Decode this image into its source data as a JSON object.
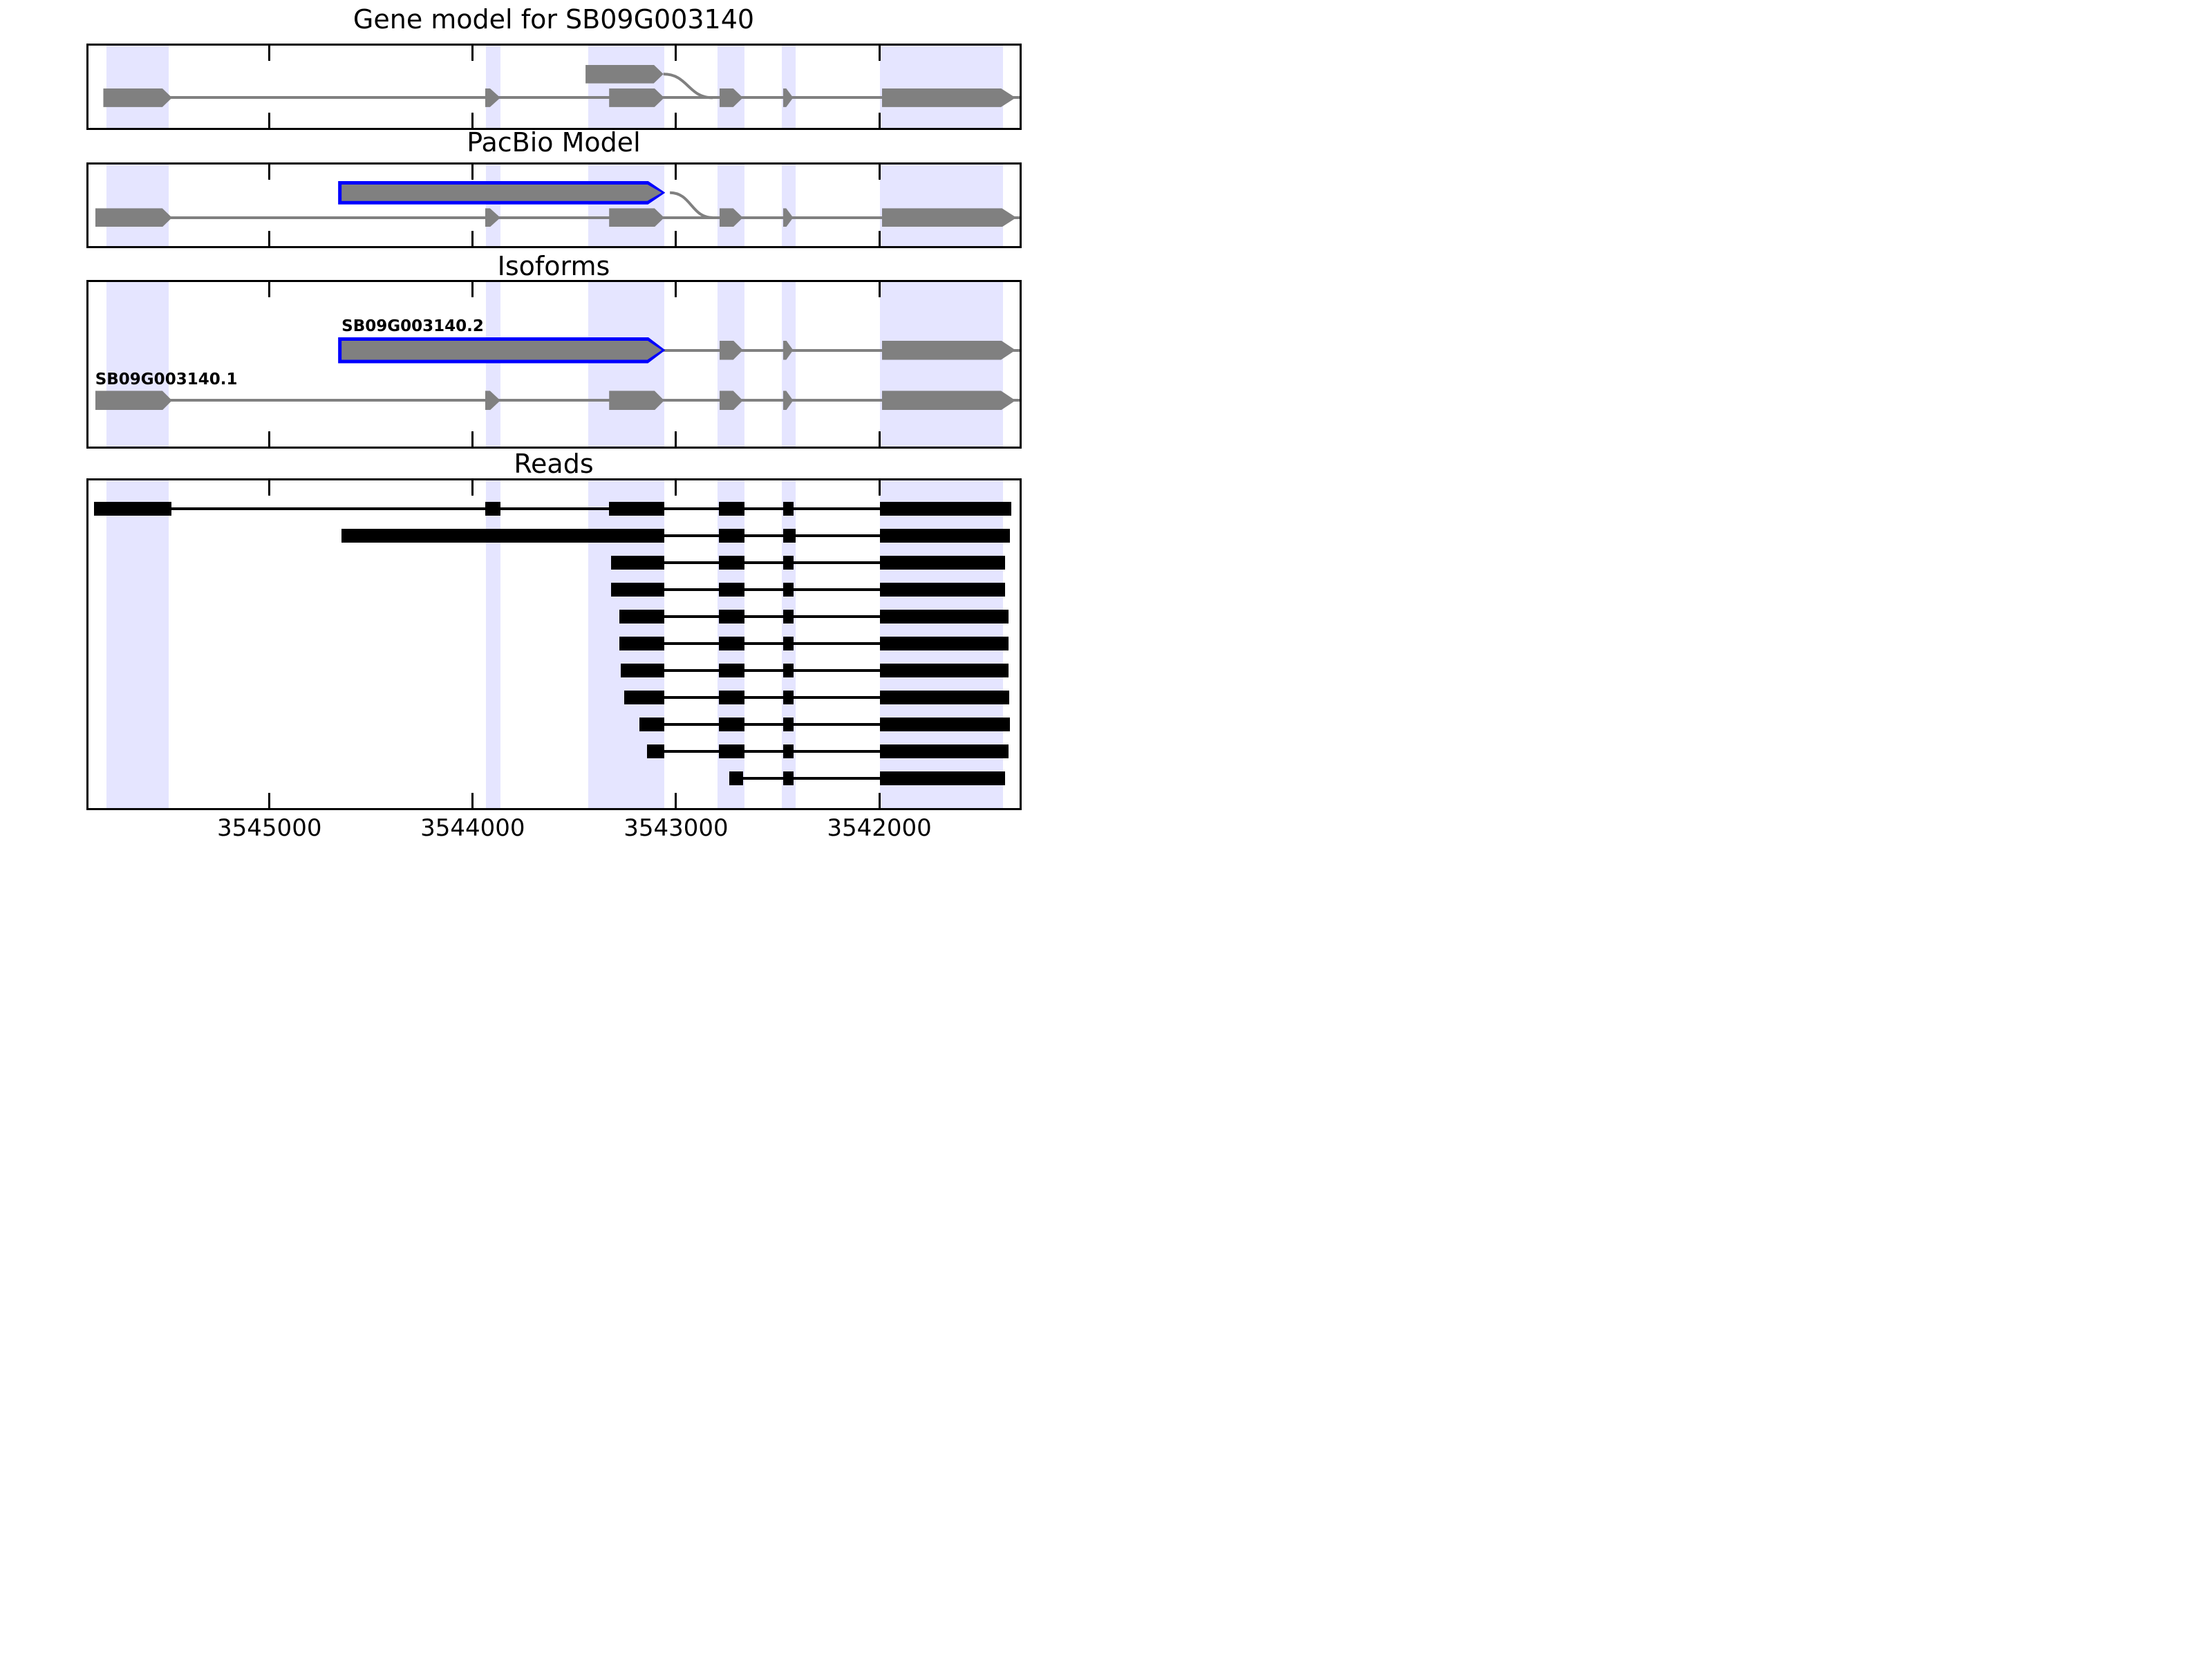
{
  "chart_data": {
    "type": "table",
    "subtype": "genome-browser-gene-model-tracks",
    "gene_id": "SB09G003140",
    "axis": {
      "orientation": "reversed",
      "left_value": 3545890,
      "right_value": 3541310,
      "ticks": [
        {
          "value": 3545000,
          "label": "3545000"
        },
        {
          "value": 3544000,
          "label": "3544000"
        },
        {
          "value": 3543000,
          "label": "3543000"
        },
        {
          "value": 3542000,
          "label": "3542000"
        }
      ]
    },
    "colors": {
      "background": "#ffffff",
      "highlight_band": "#e5e5ff",
      "model_gray": "#808080",
      "highlight_blue": "#0000ff",
      "read_black": "#000000"
    },
    "highlight_bands": [
      {
        "start": 3545800,
        "end": 3545494
      },
      {
        "start": 3543934,
        "end": 3543864
      },
      {
        "start": 3543430,
        "end": 3543058
      },
      {
        "start": 3542795,
        "end": 3542662
      },
      {
        "start": 3542478,
        "end": 3542413
      },
      {
        "start": 3541997,
        "end": 3541390
      }
    ],
    "panels": [
      {
        "id": "gene-model",
        "title": "Gene model for SB09G003140",
        "tracks": [
          {
            "name": "gene-model-main",
            "row_key": "main",
            "style": "gray",
            "line": {
              "start": 3545500,
              "end": 3541310
            },
            "exons": [
              {
                "start": 3545817,
                "end": 3545479,
                "tip": true
              },
              {
                "start": 3543939,
                "end": 3543864,
                "tip": true
              },
              {
                "start": 3543329,
                "end": 3543058,
                "tip": true
              },
              {
                "start": 3542786,
                "end": 3542671,
                "tip": true
              },
              {
                "start": 3542474,
                "end": 3542424,
                "tip": true
              },
              {
                "start": 3541988,
                "end": 3541330,
                "tip": true
              }
            ]
          },
          {
            "name": "gene-model-alt-exon",
            "row_key": "alt",
            "style": "gray",
            "exons": [
              {
                "start": 3543445,
                "end": 3543062,
                "tip": true
              }
            ]
          }
        ],
        "splice_curves": [
          {
            "from": 3543062,
            "from_row": "alt",
            "to": 3542820,
            "to_row": "main"
          }
        ]
      },
      {
        "id": "pacbio-model",
        "title": "PacBio Model",
        "tracks": [
          {
            "name": "reference-model",
            "row_key": "main",
            "style": "gray",
            "line": {
              "start": 3545500,
              "end": 3541310
            },
            "exons": [
              {
                "start": 3545857,
                "end": 3545479,
                "tip": true
              },
              {
                "start": 3543939,
                "end": 3543864,
                "tip": true
              },
              {
                "start": 3543329,
                "end": 3543058,
                "tip": true
              },
              {
                "start": 3542786,
                "end": 3542671,
                "tip": true
              },
              {
                "start": 3542474,
                "end": 3542424,
                "tip": true
              },
              {
                "start": 3541988,
                "end": 3541325,
                "tip": true
              }
            ]
          },
          {
            "name": "pacbio-exon",
            "row_key": "alt",
            "style": "gray",
            "exons": [
              {
                "start": 3544645,
                "end": 3543070,
                "tip": true,
                "outline": true
              }
            ]
          }
        ],
        "splice_curves": [
          {
            "from": 3543030,
            "from_row": "alt",
            "to": 3542820,
            "to_row": "main"
          }
        ]
      },
      {
        "id": "isoforms",
        "title": "Isoforms",
        "tracks": [
          {
            "name": "SB09G003140.2",
            "label": "SB09G003140.2",
            "row_key": "iso2",
            "style": "gray",
            "line": {
              "start": 3543100,
              "end": 3541310
            },
            "exons": [
              {
                "start": 3544645,
                "end": 3543070,
                "tip": true,
                "outline": true
              },
              {
                "start": 3542786,
                "end": 3542671,
                "tip": true
              },
              {
                "start": 3542474,
                "end": 3542424,
                "tip": true
              },
              {
                "start": 3541988,
                "end": 3541330,
                "tip": true
              }
            ]
          },
          {
            "name": "SB09G003140.1",
            "label": "SB09G003140.1",
            "row_key": "iso1",
            "style": "gray",
            "line": {
              "start": 3545500,
              "end": 3541310
            },
            "exons": [
              {
                "start": 3545857,
                "end": 3545479,
                "tip": true
              },
              {
                "start": 3543939,
                "end": 3543864,
                "tip": true
              },
              {
                "start": 3543329,
                "end": 3543058,
                "tip": true
              },
              {
                "start": 3542786,
                "end": 3542671,
                "tip": true
              },
              {
                "start": 3542474,
                "end": 3542424,
                "tip": true
              },
              {
                "start": 3541988,
                "end": 3541330,
                "tip": true
              }
            ]
          }
        ]
      },
      {
        "id": "reads",
        "title": "Reads",
        "reads": [
          {
            "exons": [
              [
                3545862,
                3545483
              ],
              [
                3543939,
                3543864
              ],
              [
                3543329,
                3543058
              ],
              [
                3542790,
                3542662
              ],
              [
                3542474,
                3542422
              ],
              [
                3541997,
                3541352
              ]
            ]
          },
          {
            "exons": [
              [
                3544645,
                3543058
              ],
              [
                3542790,
                3542662
              ],
              [
                3542474,
                3542413
              ],
              [
                3541997,
                3541356
              ]
            ]
          },
          {
            "exons": [
              [
                3543321,
                3543058
              ],
              [
                3542790,
                3542662
              ],
              [
                3542474,
                3542422
              ],
              [
                3541997,
                3541383
              ]
            ]
          },
          {
            "exons": [
              [
                3543321,
                3543058
              ],
              [
                3542790,
                3542662
              ],
              [
                3542474,
                3542422
              ],
              [
                3541997,
                3541383
              ]
            ]
          },
          {
            "exons": [
              [
                3543280,
                3543058
              ],
              [
                3542790,
                3542662
              ],
              [
                3542474,
                3542422
              ],
              [
                3541997,
                3541366
              ]
            ]
          },
          {
            "exons": [
              [
                3543280,
                3543058
              ],
              [
                3542790,
                3542662
              ],
              [
                3542474,
                3542422
              ],
              [
                3541997,
                3541366
              ]
            ]
          },
          {
            "exons": [
              [
                3543272,
                3543058
              ],
              [
                3542790,
                3542662
              ],
              [
                3542474,
                3542422
              ],
              [
                3541997,
                3541366
              ]
            ]
          },
          {
            "exons": [
              [
                3543254,
                3543058
              ],
              [
                3542790,
                3542662
              ],
              [
                3542474,
                3542422
              ],
              [
                3541997,
                3541360
              ]
            ]
          },
          {
            "exons": [
              [
                3543181,
                3543058
              ],
              [
                3542790,
                3542662
              ],
              [
                3542474,
                3542422
              ],
              [
                3541997,
                3541356
              ]
            ]
          },
          {
            "exons": [
              [
                3543142,
                3543058
              ],
              [
                3542790,
                3542662
              ],
              [
                3542474,
                3542422
              ],
              [
                3541997,
                3541366
              ]
            ]
          },
          {
            "exons": [
              [
                3542737,
                3542671
              ],
              [
                3542474,
                3542422
              ],
              [
                3541997,
                3541383
              ]
            ]
          }
        ]
      }
    ]
  }
}
